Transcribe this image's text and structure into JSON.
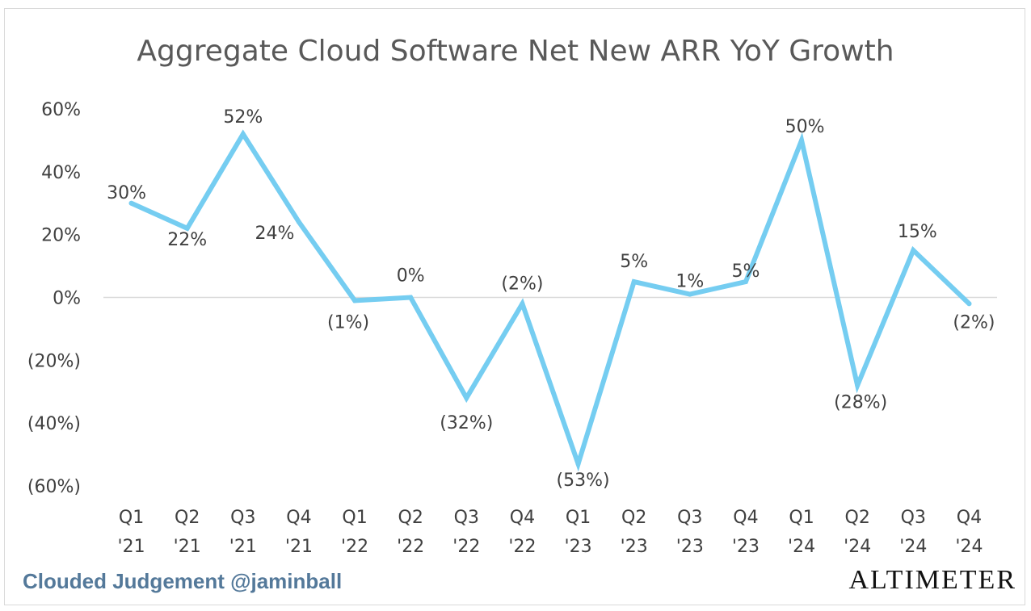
{
  "chart_data": {
    "type": "line",
    "title": "Aggregate Cloud Software Net New ARR YoY Growth",
    "xlabel": "",
    "ylabel": "",
    "categories": [
      [
        "Q1",
        "'21"
      ],
      [
        "Q2",
        "'21"
      ],
      [
        "Q3",
        "'21"
      ],
      [
        "Q4",
        "'21"
      ],
      [
        "Q1",
        "'22"
      ],
      [
        "Q2",
        "'22"
      ],
      [
        "Q3",
        "'22"
      ],
      [
        "Q4",
        "'22"
      ],
      [
        "Q1",
        "'23"
      ],
      [
        "Q2",
        "'23"
      ],
      [
        "Q3",
        "'23"
      ],
      [
        "Q4",
        "'23"
      ],
      [
        "Q1",
        "'24"
      ],
      [
        "Q2",
        "'24"
      ],
      [
        "Q3",
        "'24"
      ],
      [
        "Q4",
        "'24"
      ]
    ],
    "series": [
      {
        "values": [
          30,
          22,
          52,
          24,
          -1,
          0,
          -32,
          -2,
          -53,
          5,
          1,
          5,
          50,
          -28,
          15,
          -2
        ],
        "labels": [
          "30%",
          "22%",
          "52%",
          "24%",
          "(1%)",
          "0%",
          "(32%)",
          "(2%)",
          "(53%)",
          "5%",
          "1%",
          "5%",
          "50%",
          "(28%)",
          "15%",
          "(2%)"
        ],
        "color": "#75cdf1"
      }
    ],
    "ylim": [
      -60,
      60
    ],
    "yticks": [
      60,
      40,
      20,
      0,
      -20,
      -40,
      -60
    ],
    "ytick_labels": [
      "60%",
      "40%",
      "20%",
      "0%",
      "(20%)",
      "(40%)",
      "(60%)"
    ],
    "grid": false,
    "zero_line": true,
    "legend": "none"
  },
  "footer": {
    "left_text": "Clouded Judgement @jaminball",
    "right_text": "ALTIMETER",
    "left_color": "#54799a"
  }
}
